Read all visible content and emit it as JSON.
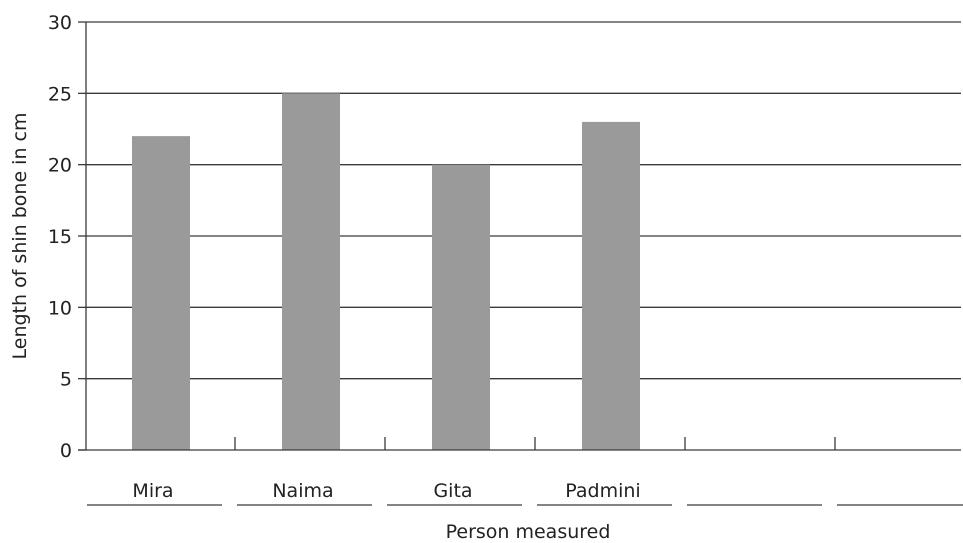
{
  "chart_data": {
    "type": "bar",
    "title": "",
    "xlabel": "Person measured",
    "ylabel": "Length of shin bone in cm",
    "categories": [
      "Mira",
      "Naima",
      "Gita",
      "Padmini",
      "",
      ""
    ],
    "values": [
      22,
      25,
      20,
      23,
      null,
      null
    ],
    "ylim": [
      0,
      30
    ],
    "yticks": [
      0,
      5,
      10,
      15,
      20,
      25,
      30
    ],
    "grid": true,
    "legend": "none",
    "bar_color": "#9a9a9a",
    "grid_color": "#3a3a3a"
  }
}
